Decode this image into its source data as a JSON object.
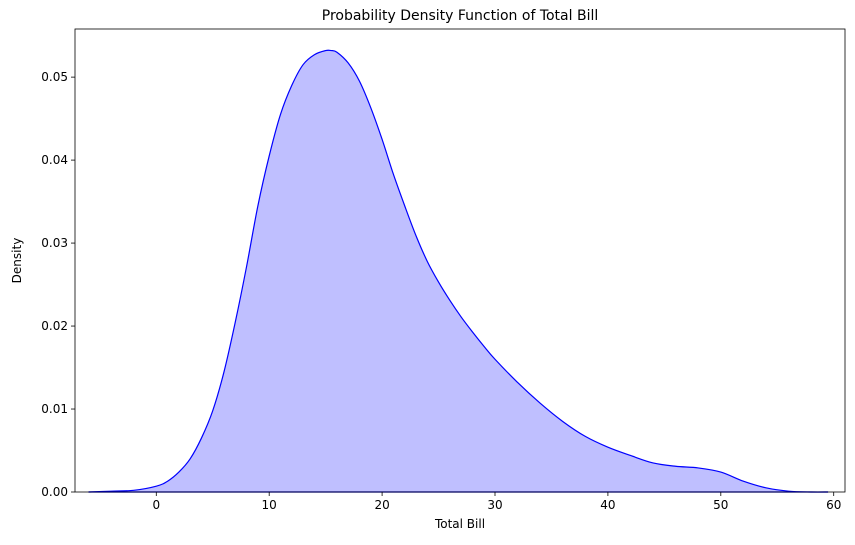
{
  "chart_data": {
    "type": "area",
    "title": "Probability Density Function of Total Bill",
    "xlabel": "Total Bill",
    "ylabel": "Density",
    "xlim": [
      -7.2,
      61.0
    ],
    "ylim": [
      0,
      0.0558
    ],
    "xticks": [
      0,
      10,
      20,
      30,
      40,
      50,
      60
    ],
    "xtick_labels": [
      "0",
      "10",
      "20",
      "30",
      "40",
      "50",
      "60"
    ],
    "yticks": [
      0,
      0.01,
      0.02,
      0.03,
      0.04,
      0.05
    ],
    "ytick_labels": [
      "0.00",
      "0.01",
      "0.02",
      "0.03",
      "0.04",
      "0.05"
    ],
    "grid": false,
    "legend": "none",
    "colors": {
      "line": "#0000ff",
      "fill": "#0000ff",
      "fill_opacity": 0.25
    },
    "series": [
      {
        "x": [
          -6,
          -4,
          -2,
          0,
          1,
          2,
          3,
          4,
          5,
          6,
          7,
          8,
          9,
          10,
          11,
          12,
          13,
          14,
          15,
          15.5,
          16,
          17,
          18,
          19,
          20,
          21,
          22,
          23,
          24,
          25,
          26,
          27,
          28,
          29,
          30,
          32,
          34,
          36,
          38,
          40,
          42,
          44,
          46,
          48,
          50,
          52,
          54,
          56,
          58,
          59.5
        ],
        "y": [
          0.0,
          0.0001,
          0.0002,
          0.0007,
          0.0013,
          0.0024,
          0.004,
          0.0065,
          0.0098,
          0.0145,
          0.0205,
          0.0272,
          0.0345,
          0.0405,
          0.0455,
          0.049,
          0.0515,
          0.0527,
          0.0532,
          0.0532,
          0.053,
          0.0517,
          0.0495,
          0.0463,
          0.0425,
          0.0383,
          0.0345,
          0.0309,
          0.0278,
          0.0253,
          0.0231,
          0.0211,
          0.0193,
          0.0176,
          0.016,
          0.0132,
          0.0107,
          0.0085,
          0.0067,
          0.0054,
          0.0044,
          0.0035,
          0.0031,
          0.0029,
          0.0024,
          0.0013,
          0.0005,
          0.0001,
          0.0,
          0.0
        ]
      }
    ]
  }
}
